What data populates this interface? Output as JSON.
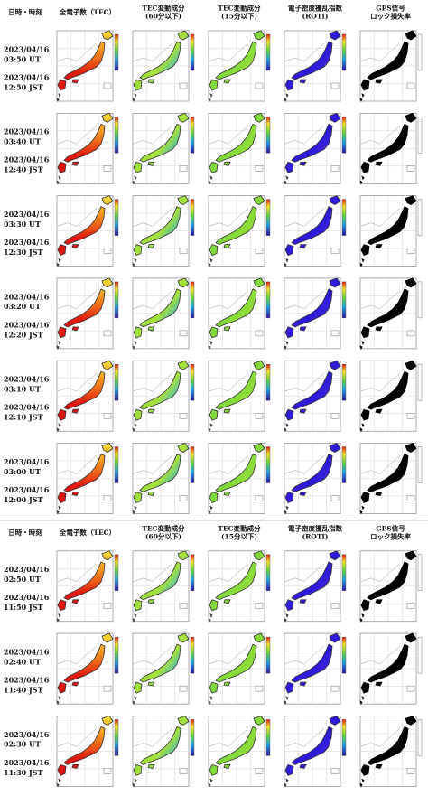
{
  "panels": [
    {
      "headers": [
        [
          "日時・時刻"
        ],
        [
          "全電子数（TEC）"
        ],
        [
          "TEC変動成分",
          "(60分以下)"
        ],
        [
          "TEC変動成分",
          "(15分以下)"
        ],
        [
          "電子密度擾乱指数",
          "(ROTI)"
        ],
        [
          "GPS信号",
          "ロック損失率"
        ]
      ],
      "rows": [
        {
          "date_ut": "2023/04/16",
          "ut": "03:50 UT",
          "date_jst": "2023/04/16",
          "jst": "12:50 JST"
        },
        {
          "date_ut": "2023/04/16",
          "ut": "03:40 UT",
          "date_jst": "2023/04/16",
          "jst": "12:40 JST"
        },
        {
          "date_ut": "2023/04/16",
          "ut": "03:30 UT",
          "date_jst": "2023/04/16",
          "jst": "12:30 JST"
        },
        {
          "date_ut": "2023/04/16",
          "ut": "03:20 UT",
          "date_jst": "2023/04/16",
          "jst": "12:20 JST"
        },
        {
          "date_ut": "2023/04/16",
          "ut": "03:10 UT",
          "date_jst": "2023/04/16",
          "jst": "12:10 JST"
        },
        {
          "date_ut": "2023/04/16",
          "ut": "03:00 UT",
          "date_jst": "2023/04/16",
          "jst": "12:00 JST"
        }
      ]
    },
    {
      "headers": [
        [
          "日時・時刻"
        ],
        [
          "全電子数（TEC）"
        ],
        [
          "TEC変動成分",
          "(60分以下)"
        ],
        [
          "TEC変動成分",
          "(15分以下)"
        ],
        [
          "電子密度擾乱指数",
          "(ROTI)"
        ],
        [
          "GPS信号",
          "ロック損失率"
        ]
      ],
      "rows": [
        {
          "date_ut": "2023/04/16",
          "ut": "02:50 UT",
          "date_jst": "2023/04/16",
          "jst": "11:50 JST"
        },
        {
          "date_ut": "2023/04/16",
          "ut": "02:40 UT",
          "date_jst": "2023/04/16",
          "jst": "11:40 JST"
        },
        {
          "date_ut": "2023/04/16",
          "ut": "02:30 UT",
          "date_jst": "2023/04/16",
          "jst": "11:30 JST"
        }
      ]
    }
  ]
}
